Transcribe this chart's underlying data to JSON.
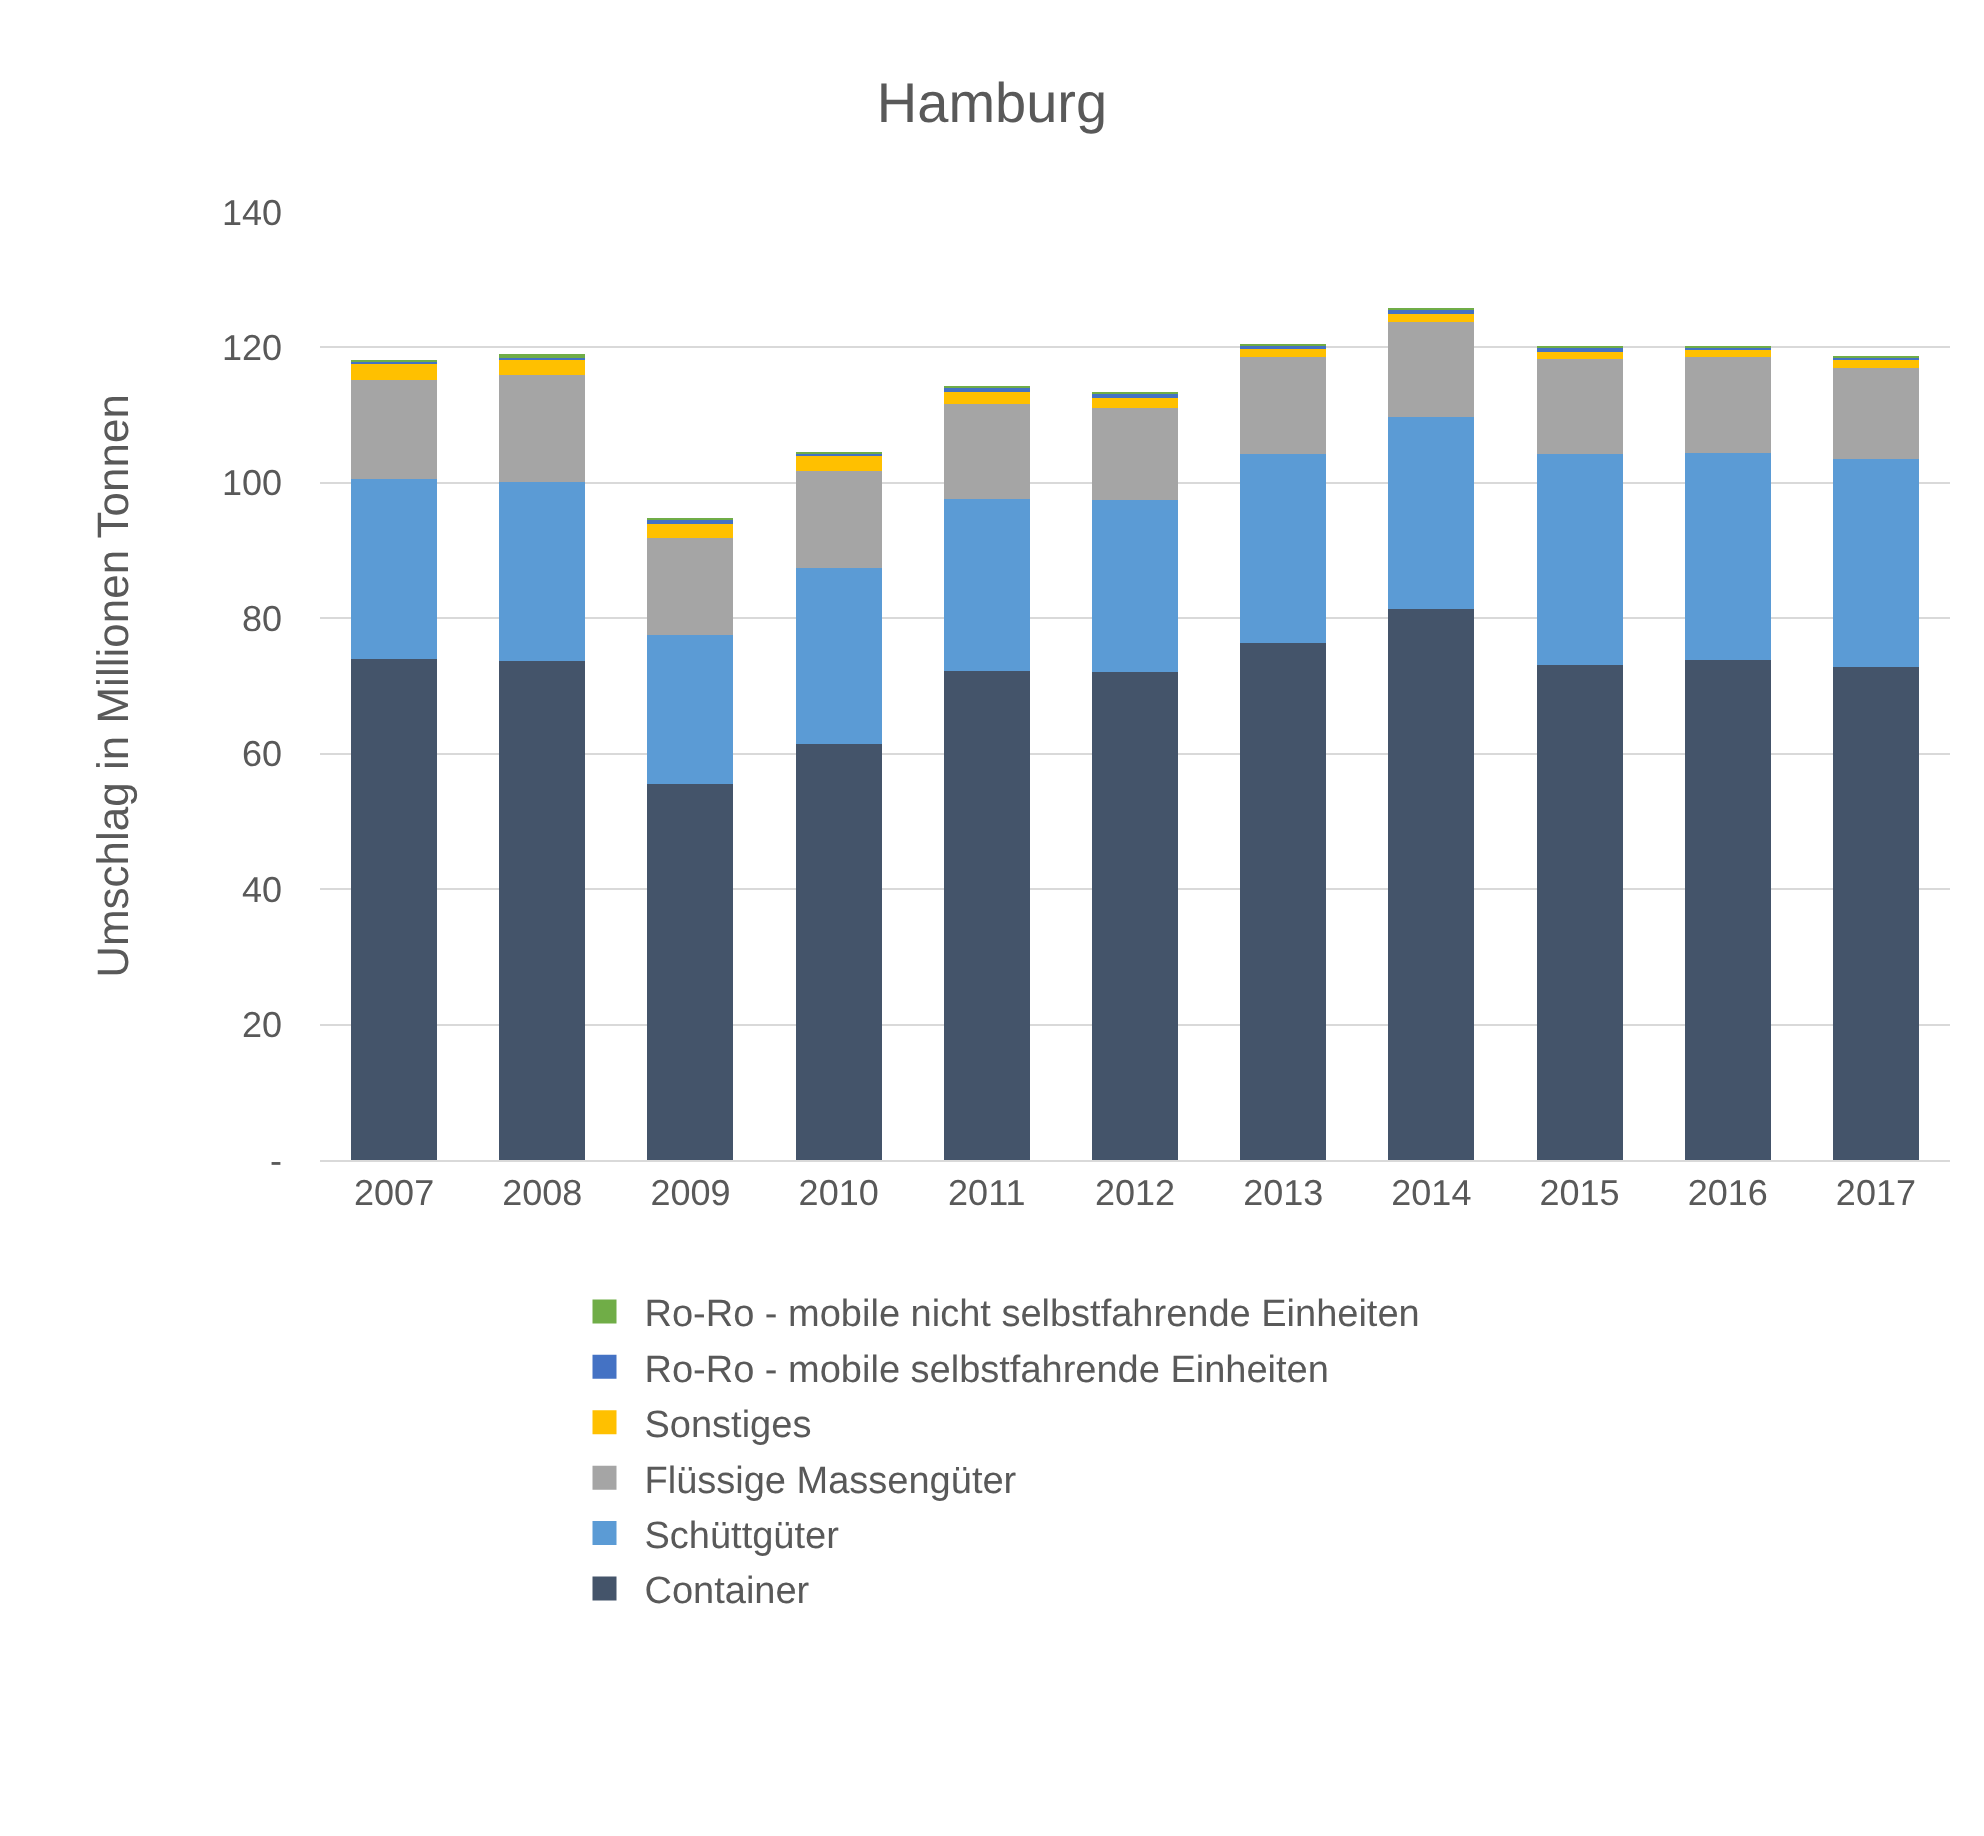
{
  "chart_data": {
    "type": "bar",
    "title": "Hamburg",
    "ylabel": "Umschlag in Millionen Tonnen",
    "categories": [
      "2007",
      "2008",
      "2009",
      "2010",
      "2011",
      "2012",
      "2013",
      "2014",
      "2015",
      "2016",
      "2017"
    ],
    "stacked": true,
    "series": [
      {
        "name": "Container",
        "color": "#44546a",
        "values": [
          74,
          73.7,
          55.6,
          61.5,
          72.2,
          72,
          76.3,
          81.3,
          73.1,
          73.9,
          72.8
        ]
      },
      {
        "name": "Schüttgüter",
        "color": "#5b9bd5",
        "values": [
          26.5,
          26.5,
          22,
          26,
          25.4,
          25.4,
          27.9,
          28.4,
          31.1,
          30.5,
          30.7
        ]
      },
      {
        "name": "Flüssige Massengüter",
        "color": "#a5a5a5",
        "values": [
          14.7,
          15.7,
          14.3,
          14.3,
          14.1,
          13.7,
          14.4,
          14.1,
          14.1,
          14.2,
          13.5
        ]
      },
      {
        "name": "Sonstiges",
        "color": "#ffc000",
        "values": [
          2.4,
          2.4,
          2.3,
          2.2,
          2,
          1.5,
          1.1,
          1.4,
          1.2,
          1.1,
          1.3
        ]
      },
      {
        "name": "Ro-Ro - mobile selbstfahrende Einheiten",
        "color": "#4472c4",
        "values": [
          0.4,
          0.4,
          0.4,
          0.4,
          0.4,
          0.6,
          0.7,
          0.5,
          0.5,
          0.4,
          0.2
        ]
      },
      {
        "name": "Ro-Ro - mobile nicht selbstfahrende Einheiten",
        "color": "#70ad47",
        "values": [
          0.1,
          0.1,
          0.1,
          0.1,
          0.1,
          0.1,
          0.1,
          0.1,
          0.1,
          0.1,
          0.1
        ]
      }
    ],
    "ylim": [
      0,
      140
    ],
    "yticks": [
      {
        "value": 0,
        "label": "-"
      },
      20,
      40,
      60,
      80,
      100,
      120,
      140
    ],
    "grid": "y",
    "legend": "bottom"
  }
}
